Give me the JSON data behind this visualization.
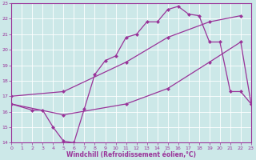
{
  "xlabel": "Windchill (Refroidissement éolien,°C)",
  "xlim": [
    0,
    23
  ],
  "ylim": [
    14,
    23
  ],
  "yticks": [
    14,
    15,
    16,
    17,
    18,
    19,
    20,
    21,
    22,
    23
  ],
  "xticks": [
    0,
    1,
    2,
    3,
    4,
    5,
    6,
    7,
    8,
    9,
    10,
    11,
    12,
    13,
    14,
    15,
    16,
    17,
    18,
    19,
    20,
    21,
    22,
    23
  ],
  "bg_color": "#cce8e8",
  "line_color": "#993399",
  "line1_x": [
    0,
    2,
    3,
    4,
    5,
    6,
    7,
    8,
    9,
    10,
    11,
    12,
    13,
    14,
    15,
    16,
    17,
    18,
    19,
    20,
    21,
    22,
    23
  ],
  "line1_y": [
    16.5,
    16.1,
    16.1,
    15.0,
    14.1,
    14.0,
    16.2,
    18.4,
    19.3,
    19.6,
    20.8,
    21.0,
    21.8,
    21.8,
    22.6,
    22.8,
    22.3,
    22.2,
    20.5,
    20.5,
    17.3,
    17.3,
    16.5
  ],
  "line2_x": [
    0,
    5,
    11,
    15,
    19,
    22
  ],
  "line2_y": [
    17.0,
    17.3,
    19.2,
    20.8,
    21.8,
    22.2
  ],
  "line3_x": [
    0,
    5,
    11,
    15,
    19,
    22,
    23
  ],
  "line3_y": [
    16.5,
    15.8,
    16.5,
    17.5,
    19.2,
    20.5,
    16.5
  ],
  "line_width": 0.9,
  "marker": "D",
  "marker_size": 2.5
}
